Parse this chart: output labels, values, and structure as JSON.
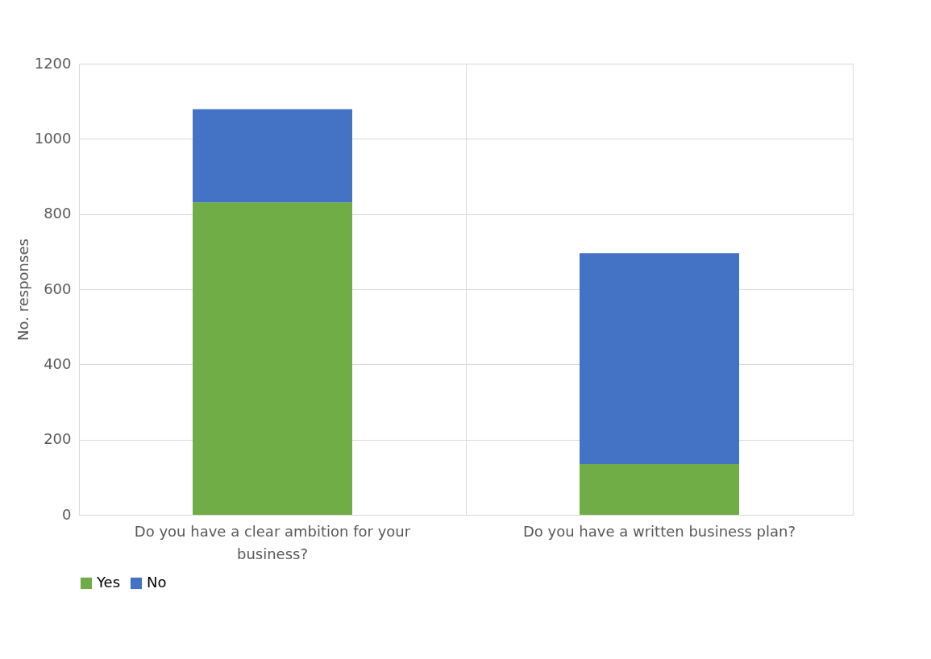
{
  "chart_data": {
    "type": "bar",
    "stacked": true,
    "ylabel": "No. responses",
    "categories": [
      "Do you have a clear ambition for your business?",
      "Do you have a written business plan?"
    ],
    "series": [
      {
        "name": "Yes",
        "color": "#70ad47",
        "values": [
          831,
          135
        ]
      },
      {
        "name": "No",
        "color": "#4472c4",
        "values": [
          248,
          561
        ]
      }
    ],
    "ylim": [
      0,
      1200
    ],
    "yticks": [
      0,
      200,
      400,
      600,
      800,
      1000,
      1200
    ],
    "grid": true,
    "legend": "bottom"
  }
}
